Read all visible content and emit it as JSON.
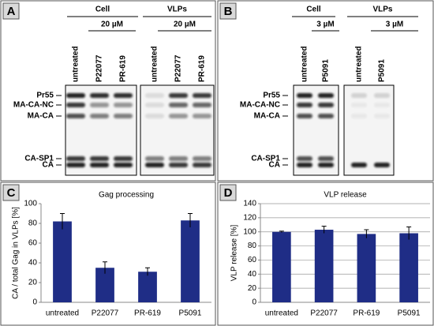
{
  "panel_a": {
    "label": "A",
    "groups": [
      "Cell",
      "VLPs"
    ],
    "concentrations": [
      "20 µM",
      "20 µM"
    ],
    "lanes": [
      "untreated",
      "P22077",
      "PR-619",
      "untreated",
      "P22077",
      "PR-619"
    ],
    "bands": [
      "Pr55",
      "MA-CA-NC",
      "MA-CA",
      "CA-SP1",
      "CA"
    ]
  },
  "panel_b": {
    "label": "B",
    "groups": [
      "Cell",
      "VLPs"
    ],
    "concentrations": [
      "3 µM",
      "3 µM"
    ],
    "lanes": [
      "untreated",
      "P5091",
      "untreated",
      "P5091"
    ],
    "bands": [
      "Pr55",
      "MA-CA-NC",
      "MA-CA",
      "CA-SP1",
      "CA"
    ]
  },
  "chart_data": [
    {
      "type": "bar",
      "panel": "C",
      "title": "Gag processing",
      "y_label": "CA / total Gag in VLPs [%]",
      "categories": [
        "untreated",
        "P22077",
        "PR-619",
        "P5091"
      ],
      "values": [
        82,
        35,
        31,
        83
      ],
      "errors": [
        8,
        6,
        4,
        7
      ],
      "color": "#1f2d86",
      "ylim": [
        0,
        100
      ],
      "yticks": [
        0,
        20,
        40,
        60,
        80,
        100
      ],
      "grid": false
    },
    {
      "type": "bar",
      "panel": "D",
      "title": "VLP release",
      "y_label": "VLP release [%]",
      "categories": [
        "untreated",
        "P22077",
        "PR-619",
        "P5091"
      ],
      "values": [
        100,
        103,
        97,
        98
      ],
      "errors": [
        1,
        5,
        6,
        9
      ],
      "color": "#1f2d86",
      "ylim": [
        0,
        140
      ],
      "yticks": [
        0,
        20,
        40,
        60,
        80,
        100,
        120,
        140
      ],
      "grid": true
    }
  ]
}
